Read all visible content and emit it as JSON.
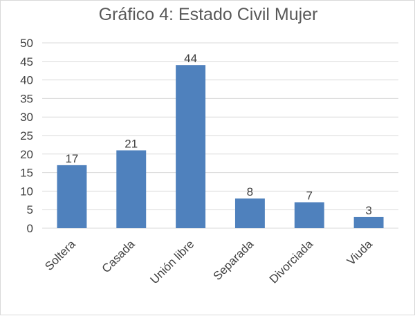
{
  "chart_data": {
    "type": "bar",
    "title": "Gráfico 4: Estado Civil Mujer",
    "categories": [
      "Soltera",
      "Casada",
      "Unión libre",
      "Separada",
      "Divorciada",
      "Viuda"
    ],
    "values": [
      17,
      21,
      44,
      8,
      7,
      3
    ],
    "ylim": [
      0,
      50
    ],
    "yticks": [
      0,
      5,
      10,
      15,
      20,
      25,
      30,
      35,
      40,
      45,
      50
    ],
    "data_labels": true,
    "grid": true,
    "legend": "none",
    "colors": {
      "bar": "#4f81bd"
    }
  }
}
